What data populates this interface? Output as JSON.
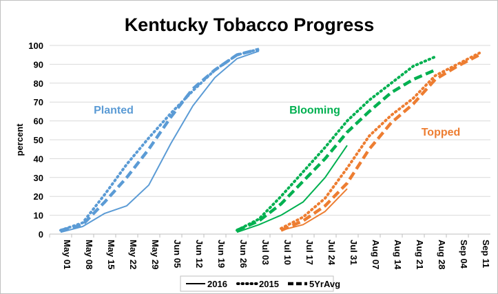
{
  "chart_data": {
    "type": "line",
    "title": "Kentucky Tobacco Progress",
    "xlabel": "",
    "ylabel": "percent",
    "ylim": [
      0,
      100
    ],
    "yticks": [
      0,
      10,
      20,
      30,
      40,
      50,
      60,
      70,
      80,
      90,
      100
    ],
    "x_tick_labels": [
      "May 01",
      "May 08",
      "May 15",
      "May 22",
      "May 29",
      "Jun 05",
      "Jun 12",
      "Jun 19",
      "Jun 26",
      "Jul 03",
      "Jul 10",
      "Jul 17",
      "Jul 24",
      "Jul 31",
      "Aug 07",
      "Aug 14",
      "Aug 21",
      "Aug 28",
      "Sep 04",
      "Sep 11"
    ],
    "grid": "horizontal",
    "legend": {
      "placement": "bottom",
      "entries": [
        {
          "label": "2016",
          "style": "solid"
        },
        {
          "label": "2015",
          "style": "dotted"
        },
        {
          "label": "5YrAvg",
          "style": "dashed"
        }
      ]
    },
    "groups": [
      {
        "label": "Planted",
        "color": "#5b9bd5"
      },
      {
        "label": "Blooming",
        "color": "#00b050"
      },
      {
        "label": "Topped",
        "color": "#ed7d31"
      }
    ],
    "series": [
      {
        "group": "Planted",
        "year": "2016",
        "style": "solid",
        "color": "#5b9bd5",
        "x": [
          "May 01",
          "May 08",
          "May 15",
          "May 22",
          "May 29",
          "Jun 05",
          "Jun 12",
          "Jun 19",
          "Jun 26",
          "Jul 03"
        ],
        "values": [
          1,
          4,
          11,
          15,
          26,
          48,
          68,
          83,
          93,
          97
        ]
      },
      {
        "group": "Planted",
        "year": "2015",
        "style": "dotted",
        "color": "#5b9bd5",
        "x": [
          "May 01",
          "May 08",
          "May 15",
          "May 22",
          "May 29",
          "Jun 05",
          "Jun 12",
          "Jun 19",
          "Jun 26",
          "Jul 03"
        ],
        "values": [
          2,
          6,
          21,
          37,
          51,
          64,
          76,
          87,
          95,
          98
        ]
      },
      {
        "group": "Planted",
        "year": "5YrAvg",
        "style": "dashed",
        "color": "#5b9bd5",
        "x": [
          "May 01",
          "May 08",
          "May 15",
          "May 22",
          "May 29",
          "Jun 05",
          "Jun 12",
          "Jun 19",
          "Jun 26",
          "Jul 03"
        ],
        "values": [
          2,
          5,
          17,
          30,
          45,
          62,
          77,
          87,
          95,
          98
        ]
      },
      {
        "group": "Blooming",
        "year": "2016",
        "style": "solid",
        "color": "#00b050",
        "x": [
          "Jun 26",
          "Jul 03",
          "Jul 10",
          "Jul 17",
          "Jul 24",
          "Jul 31"
        ],
        "values": [
          1,
          5,
          10,
          17,
          30,
          47
        ]
      },
      {
        "group": "Blooming",
        "year": "2015",
        "style": "dotted",
        "color": "#00b050",
        "x": [
          "Jun 26",
          "Jul 03",
          "Jul 10",
          "Jul 17",
          "Jul 24",
          "Jul 31",
          "Aug 07",
          "Aug 14",
          "Aug 21",
          "Aug 28"
        ],
        "values": [
          2,
          8,
          20,
          33,
          46,
          60,
          71,
          80,
          89,
          94
        ]
      },
      {
        "group": "Blooming",
        "year": "5YrAvg",
        "style": "dashed",
        "color": "#00b050",
        "x": [
          "Jun 26",
          "Jul 03",
          "Jul 10",
          "Jul 17",
          "Jul 24",
          "Jul 31",
          "Aug 07",
          "Aug 14",
          "Aug 21",
          "Aug 28"
        ],
        "values": [
          2,
          7,
          16,
          28,
          40,
          54,
          65,
          75,
          82,
          87
        ]
      },
      {
        "group": "Topped",
        "year": "2016",
        "style": "solid",
        "color": "#ed7d31",
        "x": [
          "Jul 10",
          "Jul 17",
          "Jul 24",
          "Jul 31"
        ],
        "values": [
          2,
          5,
          12,
          24
        ]
      },
      {
        "group": "Topped",
        "year": "2015",
        "style": "dotted",
        "color": "#ed7d31",
        "x": [
          "Jul 10",
          "Jul 17",
          "Jul 24",
          "Jul 31",
          "Aug 07",
          "Aug 14",
          "Aug 21",
          "Aug 28",
          "Sep 04",
          "Sep 11"
        ],
        "values": [
          3,
          9,
          19,
          35,
          52,
          63,
          72,
          84,
          90,
          96
        ]
      },
      {
        "group": "Topped",
        "year": "5YrAvg",
        "style": "dashed",
        "color": "#ed7d31",
        "x": [
          "Jul 10",
          "Jul 17",
          "Jul 24",
          "Jul 31",
          "Aug 07",
          "Aug 14",
          "Aug 21",
          "Aug 28",
          "Sep 04",
          "Sep 11"
        ],
        "values": [
          2,
          7,
          15,
          27,
          45,
          59,
          69,
          82,
          89,
          95
        ]
      }
    ]
  }
}
